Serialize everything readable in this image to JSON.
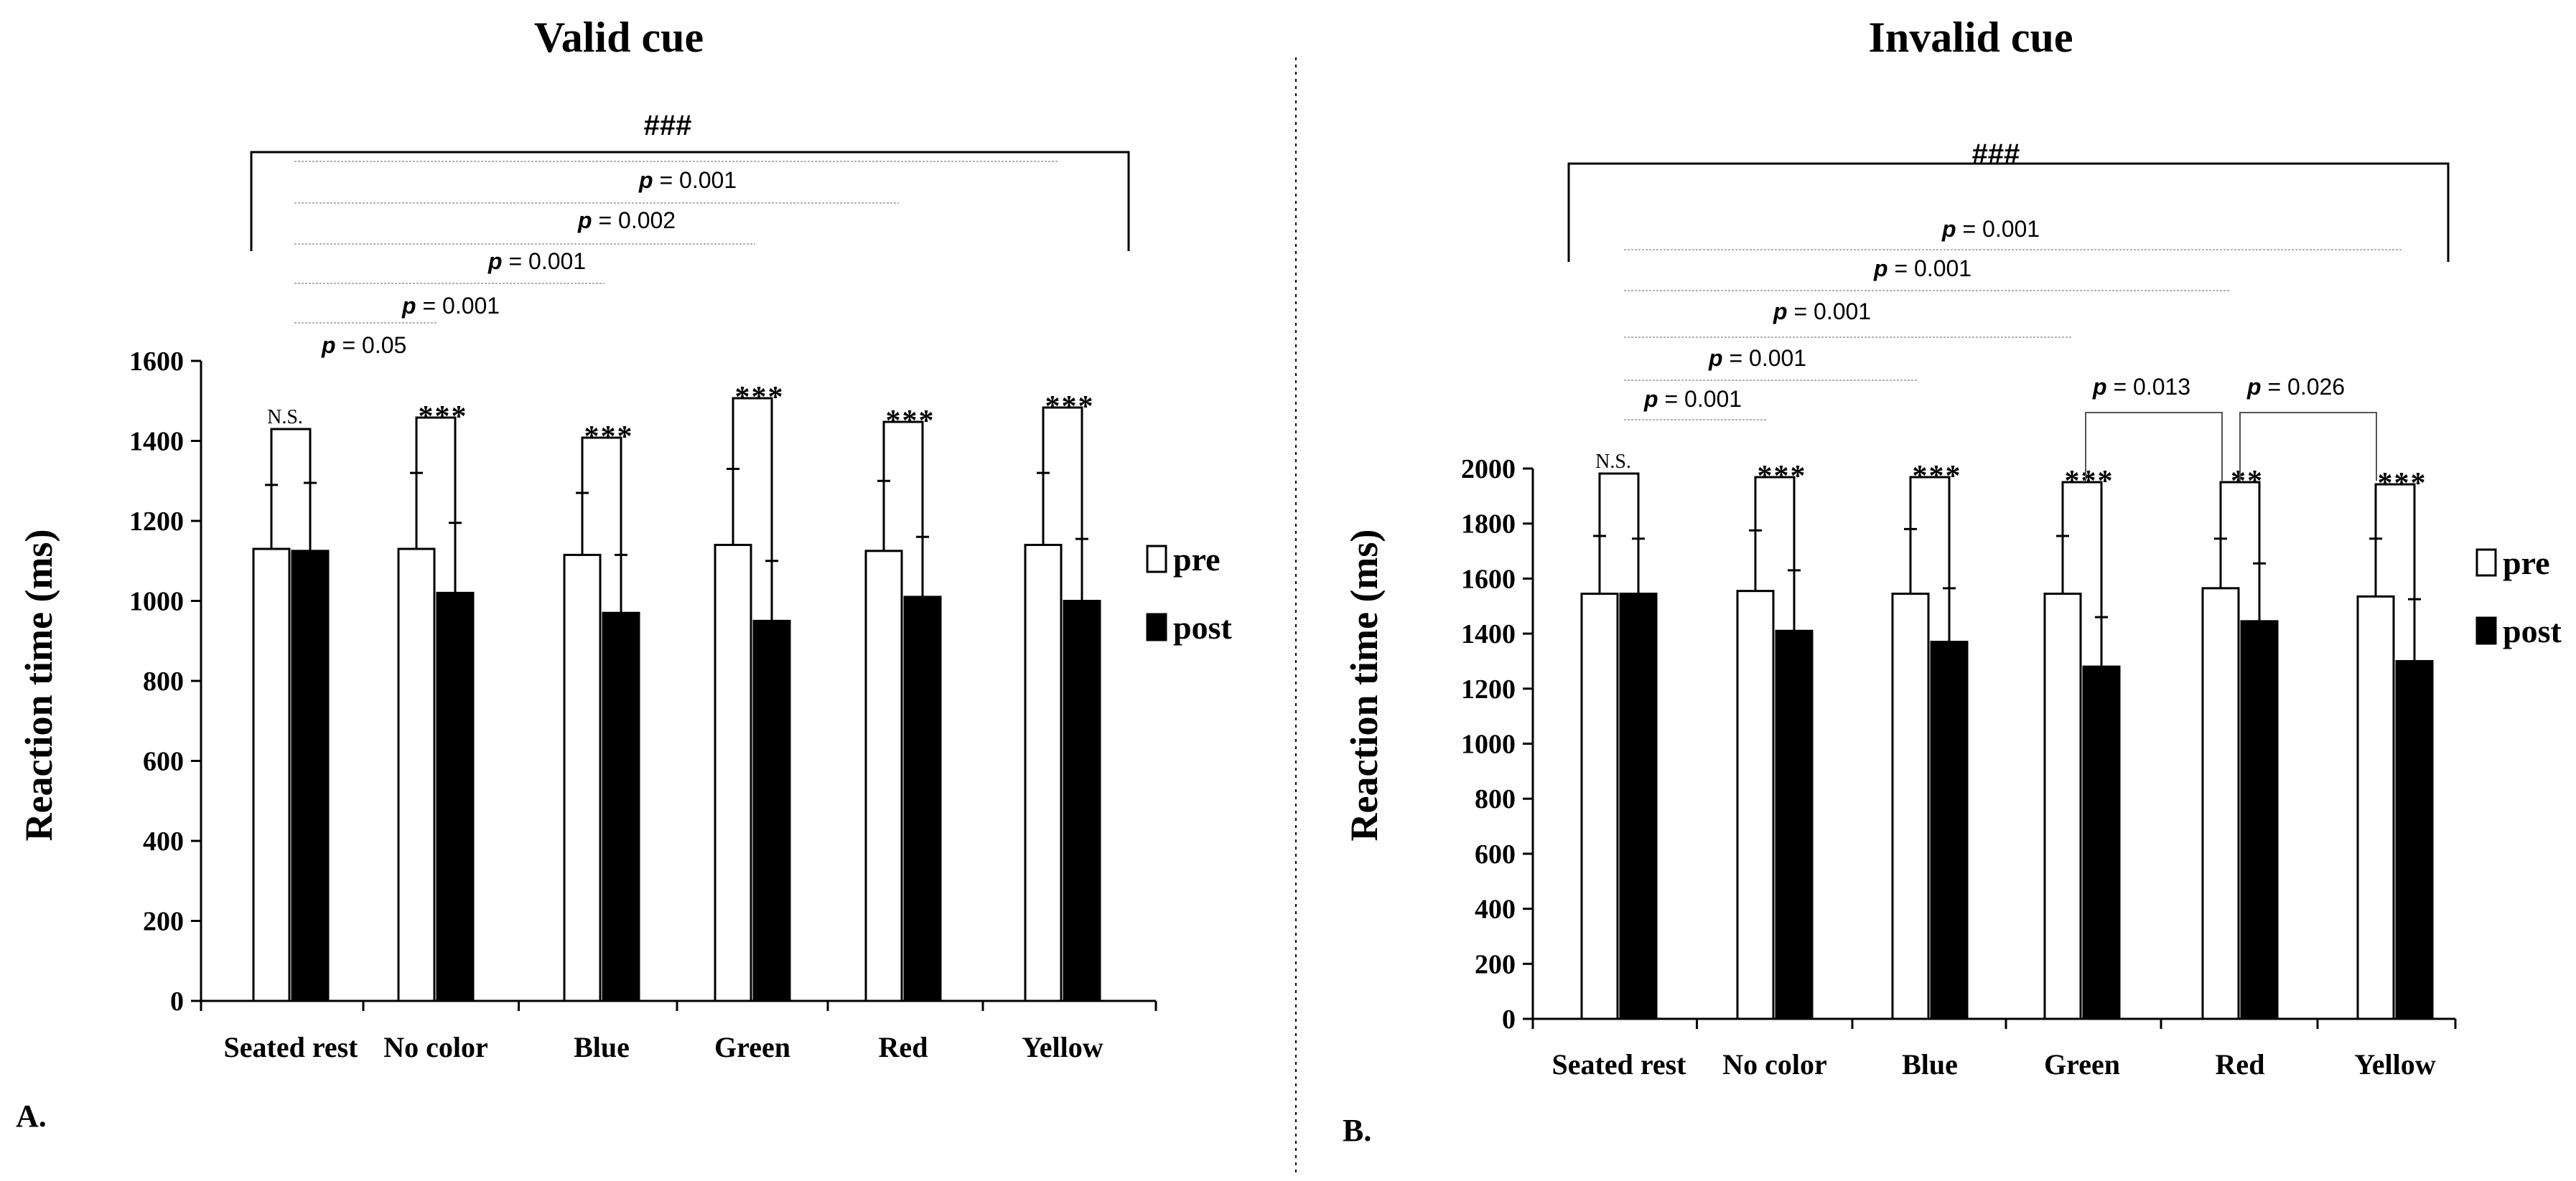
{
  "chart_data": [
    {
      "type": "bar",
      "panel_label": "A.",
      "title": "Valid cue",
      "ylabel": "Reaction time (ms)",
      "ylim": [
        0,
        1600
      ],
      "yticks": [
        0,
        200,
        400,
        600,
        800,
        1000,
        1200,
        1400,
        1600
      ],
      "categories": [
        "Seated rest",
        "No color",
        "Blue",
        "Green",
        "Red",
        "Yellow"
      ],
      "series": [
        {
          "name": "pre",
          "color": "#ffffff",
          "values": [
            1130,
            1130,
            1115,
            1140,
            1125,
            1140
          ],
          "errors": [
            160,
            190,
            155,
            190,
            175,
            180
          ]
        },
        {
          "name": "post",
          "color": "#000000",
          "values": [
            1125,
            1020,
            970,
            950,
            1010,
            1000
          ],
          "errors": [
            170,
            175,
            145,
            150,
            150,
            155
          ]
        }
      ],
      "pair_annotations": [
        "N.S.",
        "***",
        "***",
        "***",
        "***",
        "***"
      ],
      "comparisons": [
        {
          "label": "p",
          "value": "= 0.05"
        },
        {
          "label": "p",
          "value": "= 0.001"
        },
        {
          "label": "p",
          "value": "= 0.001"
        },
        {
          "label": "p",
          "value": "= 0.002"
        },
        {
          "label": "p",
          "value": "= 0.001"
        }
      ],
      "bracket_label": "###",
      "legend_position": "right"
    },
    {
      "type": "bar",
      "panel_label": "B.",
      "title": "Invalid cue",
      "ylabel": "Reaction time (ms)",
      "ylim": [
        0,
        2000
      ],
      "yticks": [
        0,
        200,
        400,
        600,
        800,
        1000,
        1200,
        1400,
        1600,
        1800,
        2000
      ],
      "categories": [
        "Seated rest",
        "No color",
        "Blue",
        "Green",
        "Red",
        "Yellow"
      ],
      "series": [
        {
          "name": "pre",
          "color": "#ffffff",
          "values": [
            1545,
            1555,
            1545,
            1545,
            1565,
            1535
          ],
          "errors": [
            210,
            220,
            235,
            210,
            180,
            210
          ]
        },
        {
          "name": "post",
          "color": "#000000",
          "values": [
            1545,
            1410,
            1370,
            1280,
            1445,
            1300
          ],
          "errors": [
            200,
            220,
            195,
            180,
            210,
            225
          ]
        }
      ],
      "pair_annotations": [
        "N.S.",
        "***",
        "***",
        "***",
        "**",
        "***"
      ],
      "comparisons": [
        {
          "label": "p",
          "value": "= 0.001"
        },
        {
          "label": "p",
          "value": "= 0.001"
        },
        {
          "label": "p",
          "value": "= 0.001"
        },
        {
          "label": "p",
          "value": "= 0.001"
        },
        {
          "label": "p",
          "value": "= 0.001"
        }
      ],
      "extra_comparisons": [
        {
          "label": "p",
          "value": "= 0.013"
        },
        {
          "label": "p",
          "value": "= 0.026"
        }
      ],
      "bracket_label": "###",
      "legend_position": "right"
    }
  ]
}
